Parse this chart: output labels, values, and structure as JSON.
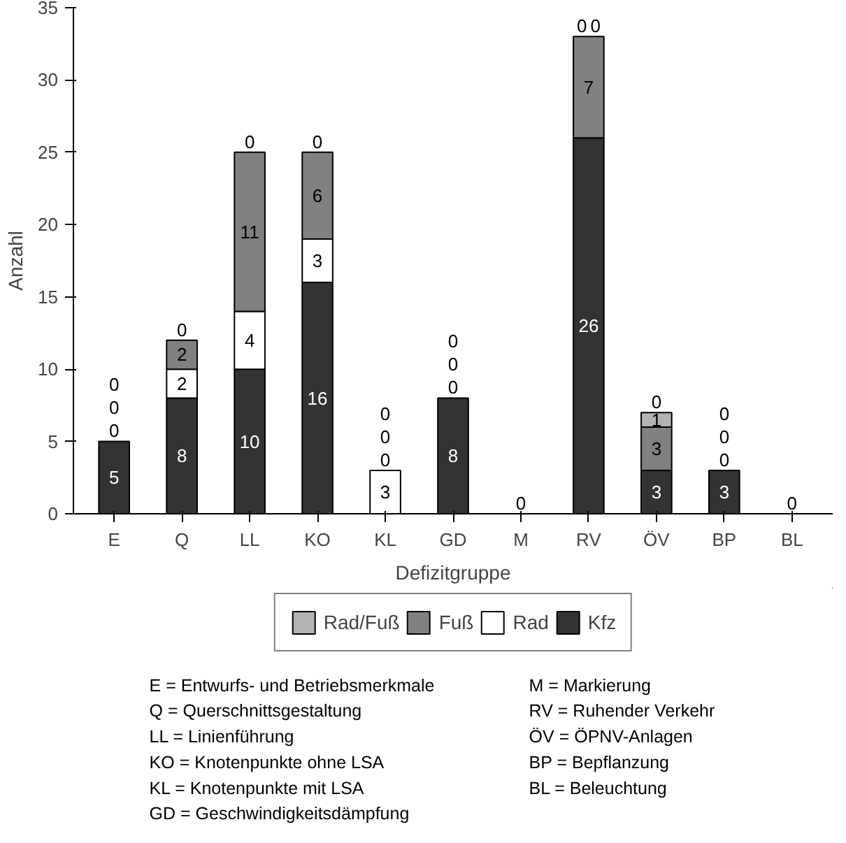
{
  "chart_data": {
    "type": "bar",
    "stacked": true,
    "xlabel": "Defizitgruppe",
    "ylabel": "Anzahl",
    "categories": [
      "E",
      "Q",
      "LL",
      "KO",
      "KL",
      "GD",
      "M",
      "RV",
      "ÖV",
      "BP",
      "BL"
    ],
    "ylim": [
      0,
      35
    ],
    "yticks": [
      0,
      5,
      10,
      15,
      20,
      25,
      30,
      35
    ],
    "grid": false,
    "legend": "bottom",
    "series": [
      {
        "name": "Kfz",
        "color": "#333333",
        "values": [
          5,
          8,
          10,
          16,
          0,
          8,
          0,
          26,
          3,
          3,
          0
        ],
        "value_labels": [
          "5",
          "8",
          "10",
          "16",
          "0",
          "8",
          "0",
          "26",
          "3",
          "3",
          "0"
        ]
      },
      {
        "name": "Rad",
        "color": "#ffffff",
        "values": [
          0,
          2,
          4,
          3,
          3,
          0,
          0,
          0,
          0,
          0,
          0
        ],
        "value_labels": [
          "0",
          "2",
          "4",
          "3",
          "3",
          "0",
          null,
          "0",
          "0",
          "0",
          null
        ]
      },
      {
        "name": "Fuß",
        "color": "#808080",
        "values": [
          0,
          2,
          11,
          6,
          0,
          0,
          0,
          7,
          3,
          0,
          0
        ],
        "value_labels": [
          "0",
          "2",
          "11",
          "6",
          "0",
          "0",
          null,
          "7",
          "3",
          "0",
          null
        ]
      },
      {
        "name": "Rad/Fuß",
        "color": "#b3b3b3",
        "values": [
          0,
          0,
          0,
          0,
          0,
          0,
          0,
          0,
          1,
          0,
          0
        ],
        "value_labels": [
          "0",
          "0",
          "0",
          "0",
          "0",
          "0",
          null,
          "0",
          "1",
          "0",
          null
        ]
      }
    ],
    "annotations": [
      "E   = Entwurfs- und Betriebsmerkmale",
      "Q   = Querschnittsgestaltung",
      "LL  = Linienführung",
      "KO = Knotenpunkte ohne LSA",
      "KL  = Knotenpunkte mit LSA",
      "GD = Geschwindigkeitsdämpfung",
      "M    = Markierung",
      "RV  = Ruhender Verkehr",
      "ÖV  = ÖPNV-Anlagen",
      "BP  = Bepflanzung",
      "BL  = Beleuchtung"
    ]
  }
}
